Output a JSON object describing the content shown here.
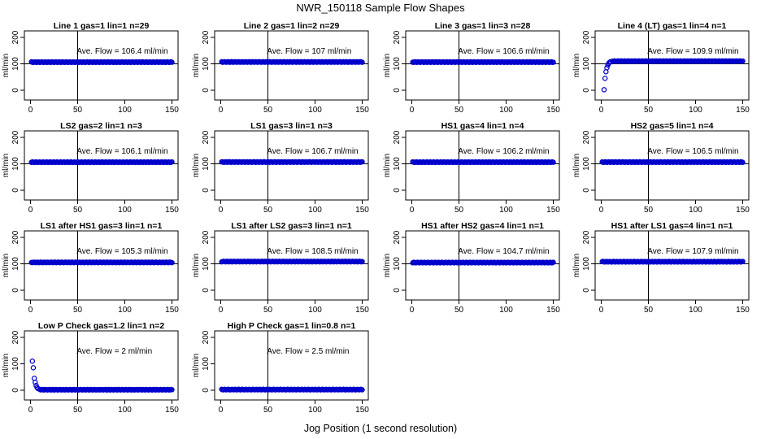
{
  "title": "NWR_150118  Sample Flow Shapes",
  "xlabel": "Jog Position (1 second resolution)",
  "colors": {
    "points": "#0000cc",
    "axes": "#000000"
  },
  "chart_data": [
    {
      "type": "scatter",
      "title": "Line 1 gas=1 lin=1 n=29",
      "ylabel": "ml/min",
      "xlim": [
        0,
        150
      ],
      "ylim": [
        0,
        200
      ],
      "xticks": [
        0,
        50,
        100,
        150
      ],
      "yticks": [
        0,
        100,
        200
      ],
      "vline": 50,
      "hline": 100,
      "annotation": "Ave. Flow = 106.4  ml/min",
      "shape": "flat",
      "level": 106.4
    },
    {
      "type": "scatter",
      "title": "Line 2 gas=1 lin=2 n=29",
      "ylabel": "ml/min",
      "xlim": [
        0,
        150
      ],
      "ylim": [
        0,
        200
      ],
      "xticks": [
        0,
        50,
        100,
        150
      ],
      "yticks": [
        0,
        100,
        200
      ],
      "vline": 50,
      "hline": 100,
      "annotation": "Ave. Flow = 107  ml/min",
      "shape": "flat",
      "level": 107
    },
    {
      "type": "scatter",
      "title": "Line 3 gas=1 lin=3 n=28",
      "ylabel": "ml/min",
      "xlim": [
        0,
        150
      ],
      "ylim": [
        0,
        200
      ],
      "xticks": [
        0,
        50,
        100,
        150
      ],
      "yticks": [
        0,
        100,
        200
      ],
      "vline": 50,
      "hline": 100,
      "annotation": "Ave. Flow = 106.6  ml/min",
      "shape": "flat",
      "level": 106.6
    },
    {
      "type": "scatter",
      "title": "Line 4 (LT) gas=1 lin=4 n=1",
      "ylabel": "ml/min",
      "xlim": [
        0,
        150
      ],
      "ylim": [
        0,
        200
      ],
      "xticks": [
        0,
        50,
        100,
        150
      ],
      "yticks": [
        0,
        100,
        200
      ],
      "vline": 50,
      "hline": 100,
      "annotation": "Ave. Flow = 109.9  ml/min",
      "shape": "rise",
      "level": 110,
      "initial_points": [
        [
          3,
          2
        ],
        [
          4,
          45
        ],
        [
          5,
          70
        ],
        [
          6,
          85
        ],
        [
          7,
          95
        ],
        [
          8,
          102
        ],
        [
          9,
          106
        ],
        [
          10,
          108
        ],
        [
          12,
          110
        ]
      ]
    },
    {
      "type": "scatter",
      "title": "LS2 gas=2 lin=1 n=3",
      "ylabel": "ml/min",
      "xlim": [
        0,
        150
      ],
      "ylim": [
        0,
        200
      ],
      "xticks": [
        0,
        50,
        100,
        150
      ],
      "yticks": [
        0,
        100,
        200
      ],
      "vline": 50,
      "hline": 100,
      "annotation": "Ave. Flow = 106.1  ml/min",
      "shape": "flat",
      "level": 106.1
    },
    {
      "type": "scatter",
      "title": "LS1 gas=3 lin=1 n=3",
      "ylabel": "ml/min",
      "xlim": [
        0,
        150
      ],
      "ylim": [
        0,
        200
      ],
      "xticks": [
        0,
        50,
        100,
        150
      ],
      "yticks": [
        0,
        100,
        200
      ],
      "vline": 50,
      "hline": 100,
      "annotation": "Ave. Flow = 106.7  ml/min",
      "shape": "flat",
      "level": 106.7
    },
    {
      "type": "scatter",
      "title": "HS1 gas=4 lin=1 n=4",
      "ylabel": "ml/min",
      "xlim": [
        0,
        150
      ],
      "ylim": [
        0,
        200
      ],
      "xticks": [
        0,
        50,
        100,
        150
      ],
      "yticks": [
        0,
        100,
        200
      ],
      "vline": 50,
      "hline": 100,
      "annotation": "Ave. Flow = 106.2  ml/min",
      "shape": "flat",
      "level": 106.2
    },
    {
      "type": "scatter",
      "title": "HS2 gas=5 lin=1 n=4",
      "ylabel": "ml/min",
      "xlim": [
        0,
        150
      ],
      "ylim": [
        0,
        200
      ],
      "xticks": [
        0,
        50,
        100,
        150
      ],
      "yticks": [
        0,
        100,
        200
      ],
      "vline": 50,
      "hline": 100,
      "annotation": "Ave. Flow = 106.5  ml/min",
      "shape": "flat",
      "level": 106.5
    },
    {
      "type": "scatter",
      "title": "LS1 after HS1 gas=3 lin=1 n=1",
      "ylabel": "ml/min",
      "xlim": [
        0,
        150
      ],
      "ylim": [
        0,
        200
      ],
      "xticks": [
        0,
        50,
        100,
        150
      ],
      "yticks": [
        0,
        100,
        200
      ],
      "vline": 50,
      "hline": 100,
      "annotation": "Ave. Flow = 105.3  ml/min",
      "shape": "flat",
      "level": 105.3
    },
    {
      "type": "scatter",
      "title": "LS1 after LS2 gas=3 lin=1 n=1",
      "ylabel": "ml/min",
      "xlim": [
        0,
        150
      ],
      "ylim": [
        0,
        200
      ],
      "xticks": [
        0,
        50,
        100,
        150
      ],
      "yticks": [
        0,
        100,
        200
      ],
      "vline": 50,
      "hline": 100,
      "annotation": "Ave. Flow = 108.5  ml/min",
      "shape": "flat",
      "level": 108.5
    },
    {
      "type": "scatter",
      "title": "HS1 after HS2 gas=4 lin=1 n=1",
      "ylabel": "ml/min",
      "xlim": [
        0,
        150
      ],
      "ylim": [
        0,
        200
      ],
      "xticks": [
        0,
        50,
        100,
        150
      ],
      "yticks": [
        0,
        100,
        200
      ],
      "vline": 50,
      "hline": 100,
      "annotation": "Ave. Flow = 104.7  ml/min",
      "shape": "flat",
      "level": 104.7
    },
    {
      "type": "scatter",
      "title": "HS1 after LS1 gas=4 lin=1 n=1",
      "ylabel": "ml/min",
      "xlim": [
        0,
        150
      ],
      "ylim": [
        0,
        200
      ],
      "xticks": [
        0,
        50,
        100,
        150
      ],
      "yticks": [
        0,
        100,
        200
      ],
      "vline": 50,
      "hline": 100,
      "annotation": "Ave. Flow = 107.9  ml/min",
      "shape": "flat",
      "level": 107.9
    },
    {
      "type": "scatter",
      "title": "Low P Check gas=1.2 lin=1 n=2",
      "ylabel": "ml/min",
      "xlim": [
        0,
        150
      ],
      "ylim": [
        0,
        200
      ],
      "xticks": [
        0,
        50,
        100,
        150
      ],
      "yticks": [
        0,
        100,
        200
      ],
      "vline": 50,
      "hline": null,
      "annotation": "Ave. Flow =  2  ml/min",
      "shape": "decay",
      "level": 2,
      "initial_points": [
        [
          2,
          110
        ],
        [
          3,
          85
        ],
        [
          4,
          45
        ],
        [
          5,
          30
        ],
        [
          6,
          18
        ],
        [
          7,
          10
        ],
        [
          8,
          6
        ],
        [
          10,
          3
        ]
      ]
    },
    {
      "type": "scatter",
      "title": "High P Check gas=1 lin=0.8 n=1",
      "ylabel": "ml/min",
      "xlim": [
        0,
        150
      ],
      "ylim": [
        0,
        200
      ],
      "xticks": [
        0,
        50,
        100,
        150
      ],
      "yticks": [
        0,
        100,
        200
      ],
      "vline": 50,
      "hline": null,
      "annotation": "Ave. Flow =  2.5  ml/min",
      "shape": "flat",
      "level": 2.5
    }
  ]
}
